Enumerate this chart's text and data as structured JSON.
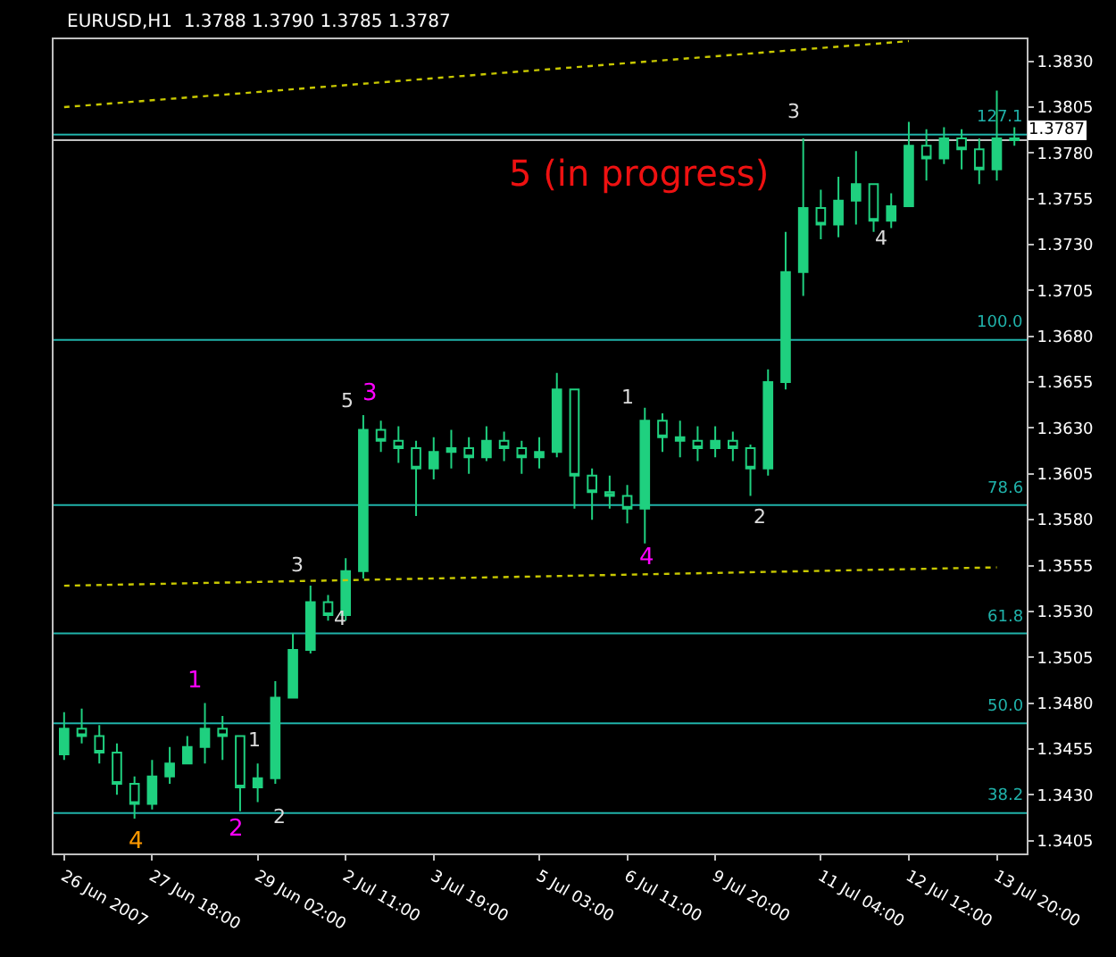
{
  "chart_data": {
    "type": "candlestick",
    "title": "EURUSD,H1  1.3788 1.3790 1.3785 1.3787",
    "categories": [
      "26 Jun 2007",
      null,
      null,
      null,
      null,
      "27 Jun 18:00",
      null,
      null,
      null,
      null,
      null,
      "29 Jun 02:00",
      null,
      null,
      null,
      null,
      "2 Jul 11:00",
      null,
      null,
      null,
      null,
      "3 Jul 19:00",
      null,
      null,
      null,
      null,
      null,
      "5 Jul 03:00",
      null,
      null,
      null,
      null,
      "6 Jul 11:00",
      null,
      null,
      null,
      null,
      "9 Jul 20:00",
      null,
      null,
      null,
      null,
      null,
      "11 Jul 04:00",
      null,
      null,
      null,
      null,
      "12 Jul 12:00",
      null,
      null,
      null,
      null,
      "13 Jul 20:00",
      null
    ],
    "series": [
      {
        "color": "#1fd07f",
        "ohlc": [
          [
            1.3452,
            1.3475,
            1.3449,
            1.3466
          ],
          [
            1.3466,
            1.3477,
            1.3458,
            1.3462
          ],
          [
            1.3462,
            1.3468,
            1.3447,
            1.3453
          ],
          [
            1.3453,
            1.3458,
            1.343,
            1.3436
          ],
          [
            1.3436,
            1.344,
            1.3417,
            1.3425
          ],
          [
            1.3425,
            1.3449,
            1.3422,
            1.344
          ],
          [
            1.344,
            1.3456,
            1.3436,
            1.3447
          ],
          [
            1.3447,
            1.3462,
            1.3447,
            1.3456
          ],
          [
            1.3456,
            1.348,
            1.3447,
            1.3466
          ],
          [
            1.3466,
            1.3473,
            1.3449,
            1.3462
          ],
          [
            1.3462,
            1.3462,
            1.3421,
            1.3434
          ],
          [
            1.3434,
            1.3447,
            1.3426,
            1.3439
          ],
          [
            1.3439,
            1.3492,
            1.3436,
            1.3483
          ],
          [
            1.3483,
            1.3518,
            1.3483,
            1.3509
          ],
          [
            1.3509,
            1.3544,
            1.3507,
            1.3535
          ],
          [
            1.3535,
            1.3539,
            1.3525,
            1.3528
          ],
          [
            1.3528,
            1.3559,
            1.3525,
            1.3552
          ],
          [
            1.3552,
            1.3637,
            1.3548,
            1.3629
          ],
          [
            1.3629,
            1.3634,
            1.3617,
            1.3623
          ],
          [
            1.3623,
            1.3631,
            1.3611,
            1.3619
          ],
          [
            1.3619,
            1.3623,
            1.3582,
            1.3608
          ],
          [
            1.3608,
            1.3625,
            1.3602,
            1.3617
          ],
          [
            1.3617,
            1.3629,
            1.3608,
            1.3619
          ],
          [
            1.3619,
            1.3625,
            1.3605,
            1.3614
          ],
          [
            1.3614,
            1.3631,
            1.3612,
            1.3623
          ],
          [
            1.3623,
            1.3628,
            1.3612,
            1.3619
          ],
          [
            1.3619,
            1.3623,
            1.3605,
            1.3614
          ],
          [
            1.3614,
            1.3625,
            1.3608,
            1.3617
          ],
          [
            1.3617,
            1.366,
            1.3614,
            1.3651
          ],
          [
            1.3651,
            1.3651,
            1.3586,
            1.3604
          ],
          [
            1.3604,
            1.3608,
            1.358,
            1.3595
          ],
          [
            1.3595,
            1.3604,
            1.3586,
            1.3593
          ],
          [
            1.3593,
            1.3599,
            1.3578,
            1.3586
          ],
          [
            1.3586,
            1.3641,
            1.3567,
            1.3634
          ],
          [
            1.3634,
            1.3638,
            1.3617,
            1.3625
          ],
          [
            1.3625,
            1.3634,
            1.3614,
            1.3623
          ],
          [
            1.3623,
            1.3631,
            1.3612,
            1.3619
          ],
          [
            1.3619,
            1.3631,
            1.3614,
            1.3623
          ],
          [
            1.3623,
            1.3628,
            1.3612,
            1.3619
          ],
          [
            1.3619,
            1.3621,
            1.3593,
            1.3608
          ],
          [
            1.3608,
            1.3662,
            1.3604,
            1.3655
          ],
          [
            1.3655,
            1.3737,
            1.3651,
            1.3715
          ],
          [
            1.3715,
            1.3788,
            1.3702,
            1.375
          ],
          [
            1.375,
            1.376,
            1.3733,
            1.3741
          ],
          [
            1.3741,
            1.3767,
            1.3734,
            1.3754
          ],
          [
            1.3754,
            1.3781,
            1.3741,
            1.3763
          ],
          [
            1.3763,
            1.3763,
            1.3737,
            1.3743
          ],
          [
            1.3743,
            1.3758,
            1.3739,
            1.3751
          ],
          [
            1.3751,
            1.3797,
            1.3751,
            1.3784
          ],
          [
            1.3784,
            1.3793,
            1.3765,
            1.3777
          ],
          [
            1.3777,
            1.3794,
            1.3774,
            1.3788
          ],
          [
            1.3788,
            1.3793,
            1.3771,
            1.3782
          ],
          [
            1.3782,
            1.3788,
            1.3763,
            1.3771
          ],
          [
            1.3771,
            1.3814,
            1.3765,
            1.3788
          ],
          [
            1.3788,
            1.3794,
            1.3784,
            1.3787
          ]
        ]
      },
      {
        "type": "line",
        "color": "#c8c800",
        "line_style": "dotted",
        "x": [
          "26 Jun 2007",
          "12 Jul 12:00"
        ],
        "values": [
          1.3805,
          1.3841
        ]
      },
      {
        "type": "line",
        "color": "#c8c800",
        "line_style": "dotted",
        "x": [
          "26 Jun 2007",
          "13 Jul 20:00"
        ],
        "values": [
          1.3544,
          1.3554
        ]
      }
    ],
    "ylim": [
      1.3398,
      1.3842
    ],
    "yticks": [
      {
        "value": 1.3405,
        "label": "1.3405"
      },
      {
        "value": 1.343,
        "label": "1.3430"
      },
      {
        "value": 1.3455,
        "label": "1.3455"
      },
      {
        "value": 1.348,
        "label": "1.3480"
      },
      {
        "value": 1.3505,
        "label": "1.3505"
      },
      {
        "value": 1.353,
        "label": "1.3530"
      },
      {
        "value": 1.3555,
        "label": "1.3555"
      },
      {
        "value": 1.358,
        "label": "1.3580"
      },
      {
        "value": 1.3605,
        "label": "1.3605"
      },
      {
        "value": 1.363,
        "label": "1.3630"
      },
      {
        "value": 1.3655,
        "label": "1.3655"
      },
      {
        "value": 1.368,
        "label": "1.3680"
      },
      {
        "value": 1.3705,
        "label": "1.3705"
      },
      {
        "value": 1.373,
        "label": "1.3730"
      },
      {
        "value": 1.3755,
        "label": "1.3755"
      },
      {
        "value": 1.378,
        "label": "1.3780"
      },
      {
        "value": 1.3805,
        "label": "1.3805"
      },
      {
        "value": 1.383,
        "label": "1.3830"
      }
    ],
    "ref_lines": [
      {
        "axis": "y",
        "value": 1.342,
        "color": "#20b2aa"
      },
      {
        "axis": "y",
        "value": 1.3469,
        "color": "#20b2aa"
      },
      {
        "axis": "y",
        "value": 1.3518,
        "color": "#20b2aa"
      },
      {
        "axis": "y",
        "value": 1.3588,
        "color": "#20b2aa"
      },
      {
        "axis": "y",
        "value": 1.3678,
        "color": "#20b2aa"
      },
      {
        "axis": "y",
        "value": 1.379,
        "color": "#20b2aa"
      },
      {
        "axis": "y",
        "value": 1.3787,
        "label": "1.3787",
        "color": "#c0c0c0"
      }
    ],
    "annotations": [
      "1",
      "2",
      "4",
      "1",
      "2",
      "3",
      "4",
      "5",
      "3",
      "1",
      "4",
      "2",
      "3",
      "4",
      "5 (in progress)",
      "38.2",
      "50.0",
      "61.8",
      "78.6",
      "100.0",
      "127.1"
    ],
    "grid": false
  }
}
